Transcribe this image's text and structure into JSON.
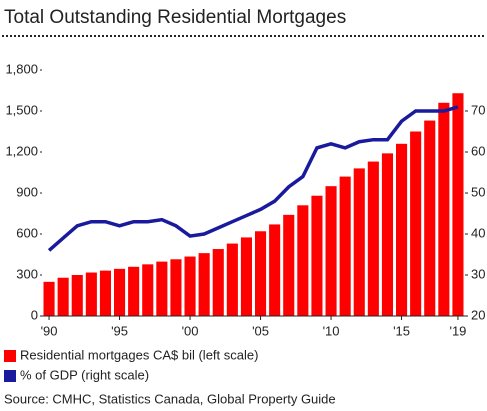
{
  "chart_data": {
    "type": "bar_line",
    "title": "Total Outstanding Residential Mortgages",
    "source": "Source: CMHC, Statistics Canada, Global Property Guide",
    "categories": [
      "'90",
      null,
      null,
      null,
      null,
      "'95",
      null,
      null,
      null,
      null,
      "'00",
      null,
      null,
      null,
      null,
      "'05",
      null,
      null,
      null,
      null,
      "'10",
      null,
      null,
      null,
      null,
      "'15",
      null,
      null,
      null,
      "'19"
    ],
    "series": [
      {
        "name": "Residential mortgages CA$ bil (left scale)",
        "color": "#ff0000",
        "type": "bar",
        "values": [
          250,
          280,
          300,
          318,
          332,
          345,
          360,
          378,
          398,
          415,
          435,
          460,
          490,
          530,
          575,
          620,
          670,
          740,
          810,
          880,
          950,
          1020,
          1080,
          1130,
          1190,
          1260,
          1350,
          1430,
          1560,
          1630
        ]
      },
      {
        "name": "% of GDP (right scale)",
        "color": "#1a1a9c",
        "type": "line",
        "axis": "y2",
        "values": [
          36,
          39,
          42,
          43,
          43,
          42,
          43,
          43,
          43.5,
          42,
          39.5,
          40,
          41.5,
          43,
          44.5,
          46,
          48,
          51.5,
          54,
          61,
          62,
          61,
          62.5,
          63,
          63,
          67.5,
          70,
          70,
          70,
          71
        ]
      }
    ],
    "ylim": [
      0,
      1800
    ],
    "yticks": [
      0,
      300,
      600,
      900,
      {
        "value": 1200,
        "label": "1,200"
      },
      {
        "value": 1500,
        "label": "1,500"
      },
      {
        "value": 1800,
        "label": "1,800"
      }
    ],
    "y2lim": [
      20,
      80
    ],
    "y2ticks": [
      20,
      30,
      40,
      50,
      60,
      70
    ],
    "grid": false
  }
}
